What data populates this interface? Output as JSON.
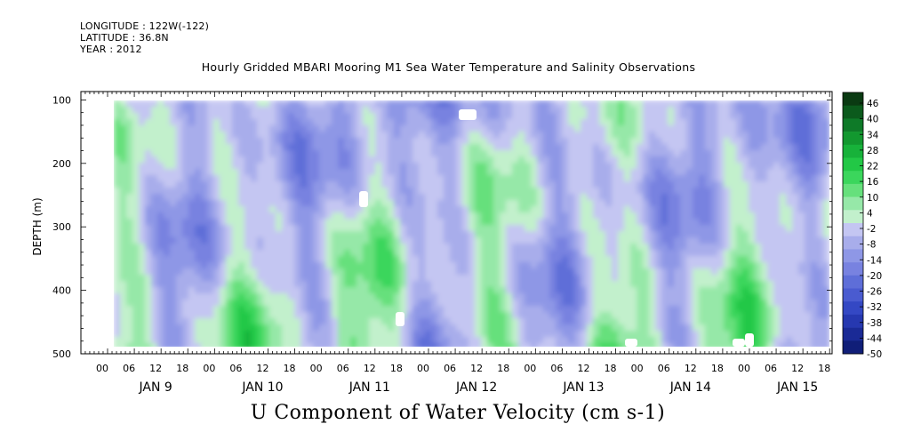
{
  "meta": {
    "longitude": "LONGITUDE : 122W(-122)",
    "latitude": "LATITUDE : 36.8N",
    "year": "YEAR : 2012"
  },
  "title": "Hourly Gridded MBARI Mooring M1 Sea Water Temperature and Salinity Observations",
  "xlabel": "U Component of Water Velocity (cm s-1)",
  "chart_data": {
    "type": "heatmap",
    "title": "Hourly Gridded MBARI Mooring M1 Sea Water Temperature and Salinity Observations",
    "xlabel": "U Component of Water Velocity (cm s-1)",
    "ylabel": "DEPTH (m)",
    "ylim": [
      500,
      0
    ],
    "y_ticks": [
      100,
      200,
      300,
      400,
      500
    ],
    "x_hour_ticks": [
      "00",
      "06",
      "12",
      "18",
      "00",
      "06",
      "12",
      "18",
      "00",
      "06",
      "12",
      "18",
      "00",
      "06",
      "12",
      "18",
      "00",
      "06",
      "12",
      "18",
      "00",
      "06",
      "12",
      "18",
      "00",
      "06",
      "12",
      "18"
    ],
    "x_day_labels": [
      "JAN  9",
      "JAN 10",
      "JAN 11",
      "JAN 12",
      "JAN 13",
      "JAN 14",
      "JAN 15"
    ],
    "colorbar_labels": [
      "46",
      "40",
      "34",
      "28",
      "22",
      "16",
      "10",
      "4",
      "-2",
      "-8",
      "-14",
      "-20",
      "-26",
      "-32",
      "-38",
      "-44",
      "-50"
    ],
    "colorbar_colors": [
      "#0a3a12",
      "#0b5a1c",
      "#0e7a28",
      "#12982f",
      "#17b23a",
      "#22c846",
      "#3bd65c",
      "#66e07c",
      "#96e8a8",
      "#c2f0cc",
      "#c4c6f2",
      "#a8adeb",
      "#8e97e6",
      "#7882e0",
      "#5e6ed8",
      "#4a5bd0",
      "#3448c4",
      "#2638b0",
      "#1a2a96",
      "#101e78"
    ],
    "colorbar_range": [
      -50,
      52
    ],
    "grid": false
  }
}
